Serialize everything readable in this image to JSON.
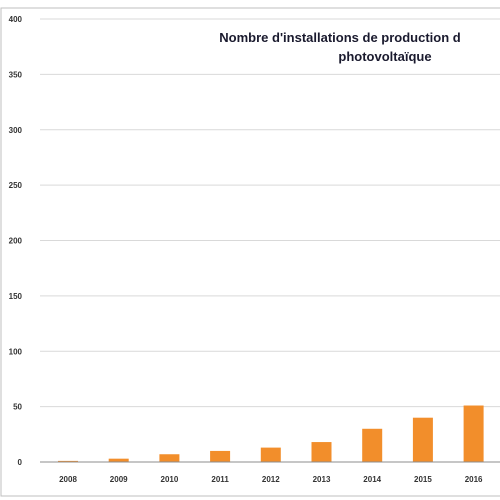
{
  "chart_data": {
    "type": "bar",
    "title_lines": [
      "Nombre d'installations de production d",
      "photovoltaïque"
    ],
    "categories": [
      "2008",
      "2009",
      "2010",
      "2011",
      "2012",
      "2013",
      "2014",
      "2015",
      "2016"
    ],
    "values": [
      1,
      3,
      7,
      10,
      13,
      18,
      30,
      40,
      51
    ],
    "yticks": [
      0,
      50,
      100,
      150,
      200,
      250,
      300,
      350,
      400
    ],
    "ylim": [
      0,
      400
    ],
    "grid": true,
    "bar_color": "#f28e2b",
    "grid_color": "#d9d9d9",
    "axis_color": "#bfbfbf"
  }
}
